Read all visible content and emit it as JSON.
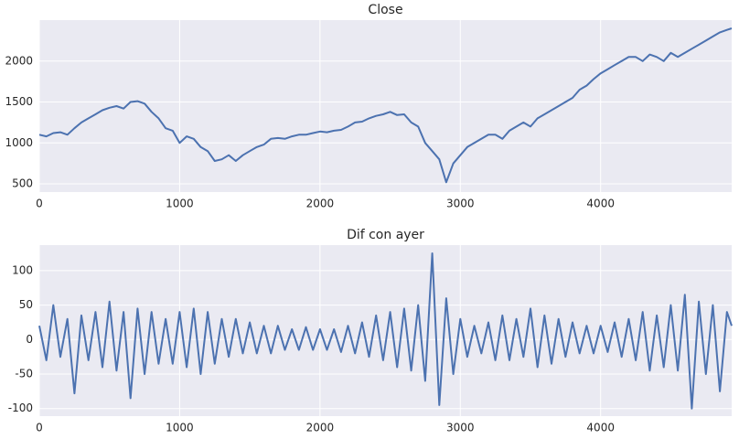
{
  "chart_data": [
    {
      "type": "line",
      "title": "Close",
      "color": "#4c72b0",
      "grid": true,
      "x": [
        0,
        50,
        100,
        150,
        200,
        250,
        300,
        350,
        400,
        450,
        500,
        550,
        600,
        650,
        700,
        750,
        800,
        850,
        900,
        950,
        1000,
        1050,
        1100,
        1150,
        1200,
        1250,
        1300,
        1350,
        1400,
        1450,
        1500,
        1550,
        1600,
        1650,
        1700,
        1750,
        1800,
        1850,
        1900,
        1950,
        2000,
        2050,
        2100,
        2150,
        2200,
        2250,
        2300,
        2350,
        2400,
        2450,
        2500,
        2550,
        2600,
        2650,
        2700,
        2750,
        2800,
        2850,
        2900,
        2950,
        3000,
        3050,
        3100,
        3150,
        3200,
        3250,
        3300,
        3350,
        3400,
        3450,
        3500,
        3550,
        3600,
        3650,
        3700,
        3750,
        3800,
        3850,
        3900,
        3950,
        4000,
        4050,
        4100,
        4150,
        4200,
        4250,
        4300,
        4350,
        4400,
        4450,
        4500,
        4550,
        4600,
        4650,
        4700,
        4750,
        4800,
        4850,
        4900,
        4934
      ],
      "values": [
        1100,
        1080,
        1120,
        1130,
        1100,
        1180,
        1250,
        1300,
        1350,
        1400,
        1430,
        1450,
        1420,
        1500,
        1510,
        1480,
        1380,
        1300,
        1180,
        1150,
        1000,
        1080,
        1050,
        950,
        900,
        780,
        800,
        850,
        780,
        850,
        900,
        950,
        980,
        1050,
        1060,
        1050,
        1080,
        1100,
        1100,
        1120,
        1140,
        1130,
        1150,
        1160,
        1200,
        1250,
        1260,
        1300,
        1330,
        1350,
        1380,
        1340,
        1350,
        1250,
        1200,
        1000,
        900,
        800,
        520,
        750,
        850,
        950,
        1000,
        1050,
        1100,
        1100,
        1050,
        1150,
        1200,
        1250,
        1200,
        1300,
        1350,
        1400,
        1450,
        1500,
        1550,
        1650,
        1700,
        1780,
        1850,
        1900,
        1950,
        2000,
        2050,
        2050,
        2000,
        2080,
        2050,
        2000,
        2100,
        2050,
        2100,
        2150,
        2200,
        2250,
        2300,
        2350,
        2380,
        2400
      ],
      "xlim": [
        0,
        4934
      ],
      "xticks": [
        0,
        1000,
        2000,
        3000,
        4000
      ],
      "ylim": [
        400,
        2500
      ],
      "yticks": [
        500,
        1000,
        1500,
        2000
      ]
    },
    {
      "type": "line",
      "title": "Dif con ayer",
      "color": "#4c72b0",
      "grid": true,
      "x": [
        0,
        50,
        100,
        150,
        200,
        250,
        300,
        350,
        400,
        450,
        500,
        550,
        600,
        650,
        700,
        750,
        800,
        850,
        900,
        950,
        1000,
        1050,
        1100,
        1150,
        1200,
        1250,
        1300,
        1350,
        1400,
        1450,
        1500,
        1550,
        1600,
        1650,
        1700,
        1750,
        1800,
        1850,
        1900,
        1950,
        2000,
        2050,
        2100,
        2150,
        2200,
        2250,
        2300,
        2350,
        2400,
        2450,
        2500,
        2550,
        2600,
        2650,
        2700,
        2750,
        2800,
        2850,
        2900,
        2950,
        3000,
        3050,
        3100,
        3150,
        3200,
        3250,
        3300,
        3350,
        3400,
        3450,
        3500,
        3550,
        3600,
        3650,
        3700,
        3750,
        3800,
        3850,
        3900,
        3950,
        4000,
        4050,
        4100,
        4150,
        4200,
        4250,
        4300,
        4350,
        4400,
        4450,
        4500,
        4550,
        4600,
        4650,
        4700,
        4750,
        4800,
        4850,
        4900,
        4934
      ],
      "values": [
        20,
        -30,
        50,
        -25,
        30,
        -78,
        35,
        -30,
        40,
        -40,
        55,
        -45,
        40,
        -85,
        45,
        -50,
        40,
        -35,
        30,
        -35,
        40,
        -40,
        45,
        -50,
        40,
        -35,
        30,
        -25,
        30,
        -20,
        25,
        -20,
        20,
        -20,
        20,
        -15,
        15,
        -15,
        18,
        -15,
        15,
        -15,
        15,
        -18,
        20,
        -20,
        25,
        -25,
        35,
        -30,
        40,
        -40,
        45,
        -45,
        50,
        -60,
        125,
        -95,
        60,
        -50,
        30,
        -25,
        20,
        -20,
        25,
        -30,
        35,
        -30,
        30,
        -25,
        45,
        -40,
        35,
        -35,
        30,
        -25,
        25,
        -20,
        20,
        -20,
        20,
        -18,
        25,
        -25,
        30,
        -30,
        40,
        -45,
        35,
        -40,
        50,
        -45,
        65,
        -100,
        55,
        -50,
        50,
        -75,
        40,
        20
      ],
      "xlim": [
        0,
        4934
      ],
      "xticks": [
        0,
        1000,
        2000,
        3000,
        4000
      ],
      "ylim": [
        -111,
        137
      ],
      "yticks": [
        -100,
        -50,
        0,
        50,
        100
      ]
    }
  ]
}
